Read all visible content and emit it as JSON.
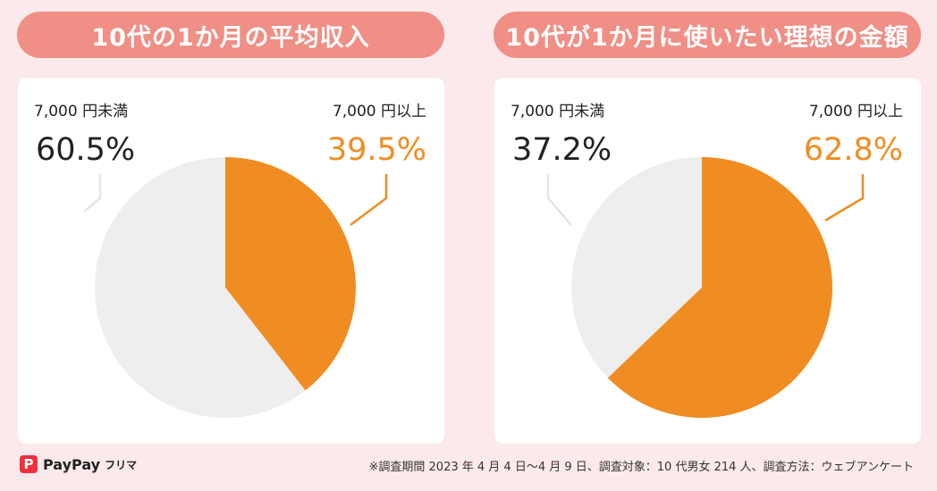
{
  "chart_data": [
    {
      "type": "pie",
      "title": "10代の1か月の平均収入",
      "categories": [
        "7,000 円未満",
        "7,000 円以上"
      ],
      "values": [
        60.5,
        39.5
      ],
      "value_labels": [
        "60.5%",
        "39.5%"
      ],
      "colors": [
        "#eeeeee",
        "#ef8d22"
      ],
      "label_colors": [
        "#222222",
        "#ef8d22"
      ]
    },
    {
      "type": "pie",
      "title": "10代が1か月に使いたい理想の金額",
      "categories": [
        "7,000 円未満",
        "7,000 円以上"
      ],
      "values": [
        37.2,
        62.8
      ],
      "value_labels": [
        "37.2%",
        "62.8%"
      ],
      "colors": [
        "#eeeeee",
        "#ef8d22"
      ],
      "label_colors": [
        "#222222",
        "#ef8d22"
      ]
    }
  ],
  "footer": {
    "note": "※調査期間 2023 年 4 月 4 日〜4 月 9 日、調査対象：10 代男女 214 人、調査方法：ウェブアンケート",
    "logo_mark": "P",
    "logo_text": "PayPay",
    "logo_sub": "フリマ"
  }
}
